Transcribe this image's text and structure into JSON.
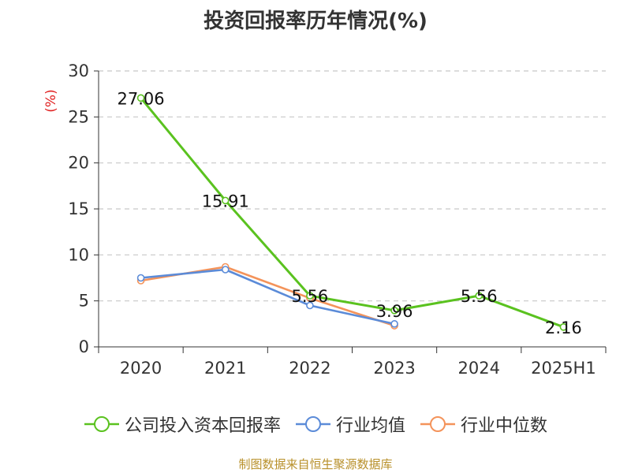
{
  "title": "投资回报率历年情况(%)",
  "source": "制图数据来自恒生聚源数据库",
  "chart_data": {
    "type": "line",
    "unit_label": "(%)",
    "categories": [
      "2020",
      "2021",
      "2022",
      "2023",
      "2024",
      "2025H1"
    ],
    "ylim": [
      0,
      30
    ],
    "yticks": [
      "0",
      "5",
      "10",
      "15",
      "20",
      "25",
      "30"
    ],
    "grid": true,
    "legend_position": "bottom",
    "series": [
      {
        "name": "公司投入资本回报率",
        "color": "#5ac21f",
        "values": [
          27.06,
          15.91,
          5.56,
          3.96,
          5.56,
          2.16
        ],
        "labels": [
          "27.06",
          "15.91",
          "5.56",
          "3.96",
          "5.56",
          "2.16"
        ]
      },
      {
        "name": "行业均值",
        "color": "#5b8bd8",
        "values": [
          7.5,
          8.4,
          4.5,
          2.5,
          null,
          null
        ]
      },
      {
        "name": "行业中位数",
        "color": "#f4935a",
        "values": [
          7.2,
          8.7,
          5.3,
          2.3,
          null,
          null
        ]
      }
    ]
  }
}
